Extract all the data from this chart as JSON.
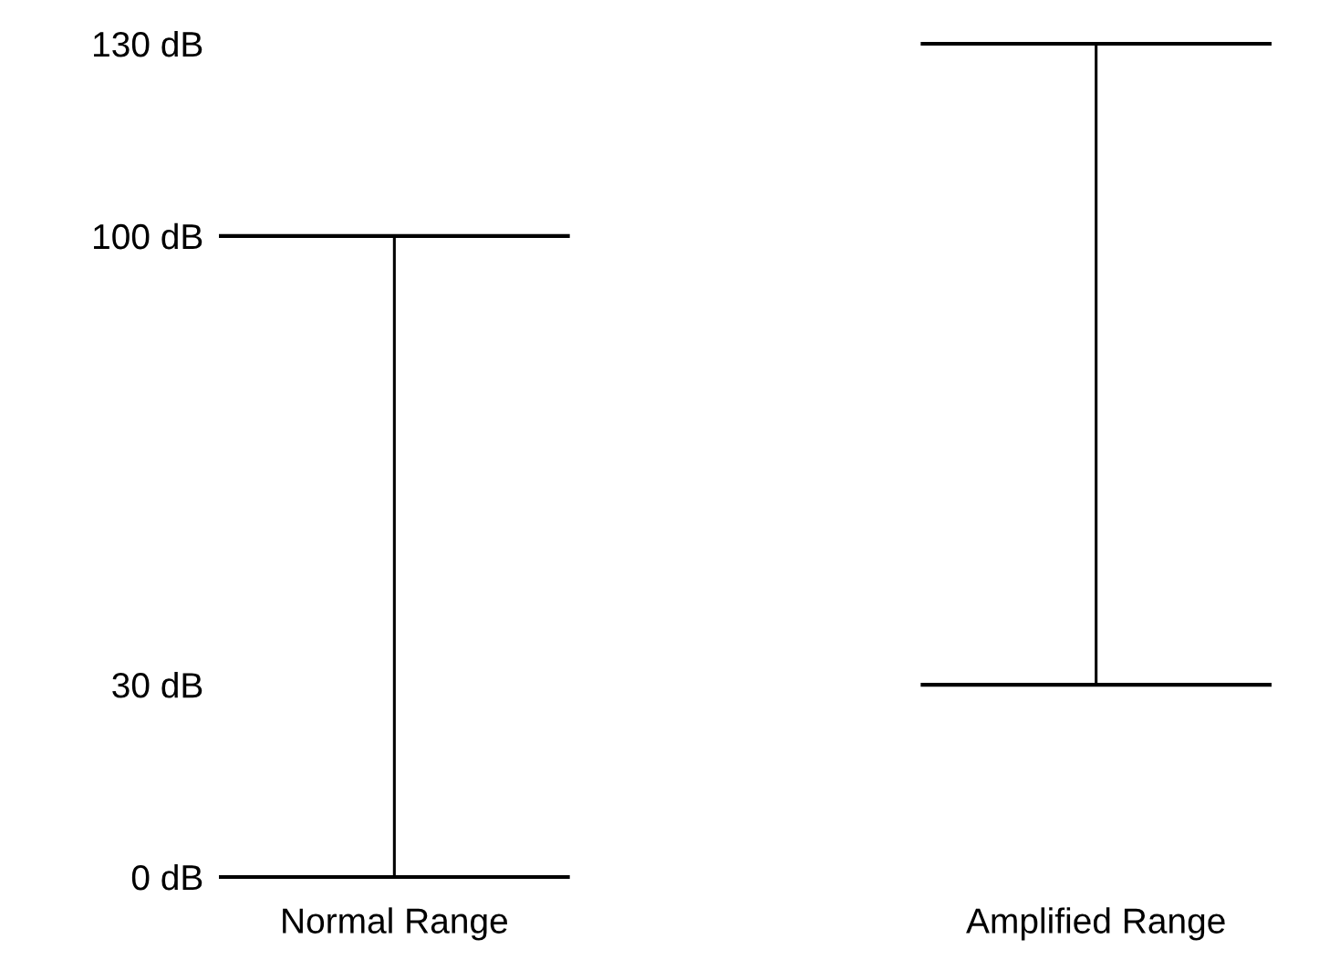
{
  "chart_data": {
    "type": "bar",
    "categories": [
      "Normal Range",
      "Amplified Range"
    ],
    "base": [
      0,
      30
    ],
    "values": [
      100,
      100
    ],
    "color": "#000000",
    "ylim": [
      0,
      130
    ],
    "yticks": [
      {
        "value": 0,
        "label": "0 dB"
      },
      {
        "value": 30,
        "label": "30 dB"
      },
      {
        "value": 100,
        "label": "100 dB"
      },
      {
        "value": 130,
        "label": "130 dB"
      }
    ]
  }
}
